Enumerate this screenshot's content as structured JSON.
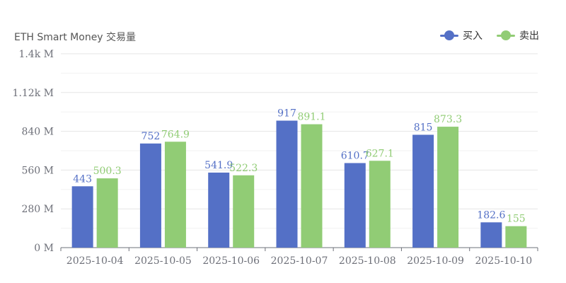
{
  "chart_data": {
    "type": "bar",
    "title": "",
    "ylabel": "ETH Smart Money 交易量",
    "xlabel": "",
    "categories": [
      "2025-10-04",
      "2025-10-05",
      "2025-10-06",
      "2025-10-07",
      "2025-10-08",
      "2025-10-09",
      "2025-10-10"
    ],
    "series": [
      {
        "name": "买入",
        "color": "#5470c6",
        "values": [
          443,
          752,
          541.9,
          917,
          610.7,
          815,
          182.6
        ]
      },
      {
        "name": "卖出",
        "color": "#91cc75",
        "values": [
          500.3,
          764.9,
          522.3,
          891.1,
          627.1,
          873.3,
          155
        ]
      }
    ],
    "ylim": [
      0,
      1400
    ],
    "y_ticks": [
      {
        "value": 0,
        "label": "0 M"
      },
      {
        "value": 280,
        "label": "280 M"
      },
      {
        "value": 560,
        "label": "560 M"
      },
      {
        "value": 840,
        "label": "840 M"
      },
      {
        "value": 1120,
        "label": "1.12k M"
      },
      {
        "value": 1400,
        "label": "1.4k M"
      }
    ],
    "grid": true,
    "legend_position": "top-right"
  }
}
